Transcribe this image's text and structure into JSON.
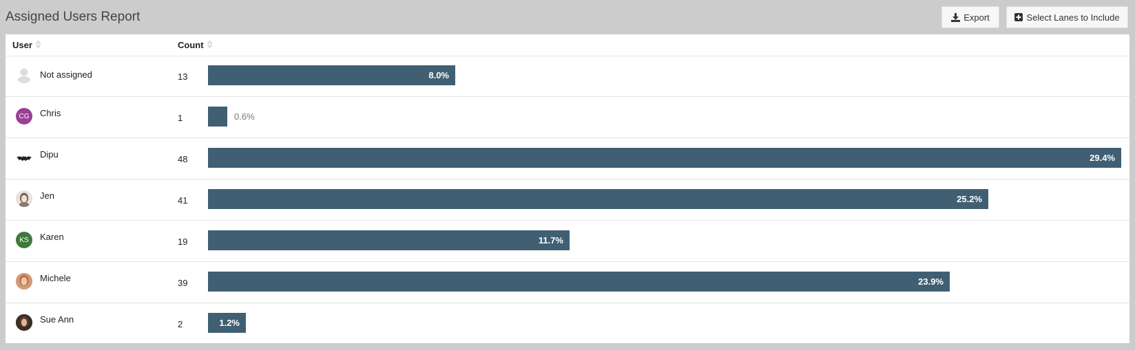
{
  "header": {
    "title": "Assigned Users Report",
    "export_label": "Export",
    "lanes_label": "Select Lanes to Include"
  },
  "table": {
    "columns": [
      "User",
      "Count"
    ]
  },
  "rows": [
    {
      "name": "Not assigned",
      "count": "13",
      "percent": "8.0%",
      "avatar": "default-person-icon"
    },
    {
      "name": "Chris",
      "count": "1",
      "percent": "0.6%",
      "avatar": "initials",
      "initials": "CG",
      "avatar_color": "#9b3f95"
    },
    {
      "name": "Dipu",
      "count": "48",
      "percent": "29.4%",
      "avatar": "bat-logo"
    },
    {
      "name": "Jen",
      "count": "41",
      "percent": "25.2%",
      "avatar": "photo"
    },
    {
      "name": "Karen",
      "count": "19",
      "percent": "11.7%",
      "avatar": "initials",
      "initials": "KS",
      "avatar_color": "#3f7a3c"
    },
    {
      "name": "Michele",
      "count": "39",
      "percent": "23.9%",
      "avatar": "photo"
    },
    {
      "name": "Sue Ann",
      "count": "2",
      "percent": "1.2%",
      "avatar": "photo"
    }
  ],
  "colors": {
    "bar": "#405f73",
    "background": "#cccccc"
  }
}
